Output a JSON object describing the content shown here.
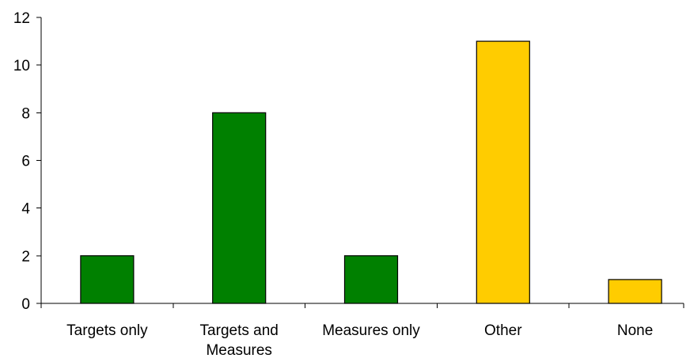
{
  "chart_data": {
    "type": "bar",
    "title": "",
    "xlabel": "",
    "ylabel": "",
    "categories": [
      [
        "Targets only"
      ],
      [
        "Targets and",
        "Measures"
      ],
      [
        "Measures only"
      ],
      [
        "Other"
      ],
      [
        "None"
      ]
    ],
    "values": [
      2,
      8,
      2,
      11,
      1
    ],
    "bar_colors": [
      "#008000",
      "#008000",
      "#008000",
      "#FFCC00",
      "#FFCC00"
    ],
    "ylim": [
      0,
      12
    ],
    "yticks": [
      0,
      2,
      4,
      6,
      8,
      10,
      12
    ],
    "grid": false,
    "legend": "none"
  }
}
